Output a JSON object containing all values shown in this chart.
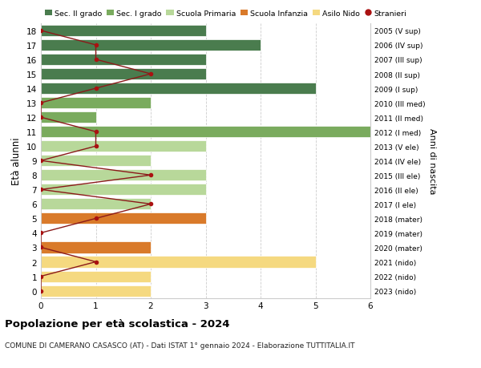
{
  "ages": [
    18,
    17,
    16,
    15,
    14,
    13,
    12,
    11,
    10,
    9,
    8,
    7,
    6,
    5,
    4,
    3,
    2,
    1,
    0
  ],
  "right_labels": [
    "2005 (V sup)",
    "2006 (IV sup)",
    "2007 (III sup)",
    "2008 (II sup)",
    "2009 (I sup)",
    "2010 (III med)",
    "2011 (II med)",
    "2012 (I med)",
    "2013 (V ele)",
    "2014 (IV ele)",
    "2015 (III ele)",
    "2016 (II ele)",
    "2017 (I ele)",
    "2018 (mater)",
    "2019 (mater)",
    "2020 (mater)",
    "2021 (nido)",
    "2022 (nido)",
    "2023 (nido)"
  ],
  "bar_values": [
    3,
    4,
    3,
    3,
    5,
    2,
    1,
    6,
    3,
    2,
    3,
    3,
    2,
    3,
    0,
    2,
    5,
    2,
    2
  ],
  "bar_colors": [
    "#4a7c4e",
    "#4a7c4e",
    "#4a7c4e",
    "#4a7c4e",
    "#4a7c4e",
    "#7aab5e",
    "#7aab5e",
    "#7aab5e",
    "#b8d89a",
    "#b8d89a",
    "#b8d89a",
    "#b8d89a",
    "#b8d89a",
    "#d97a2a",
    "#d97a2a",
    "#d97a2a",
    "#f5d980",
    "#f5d980",
    "#f5d980"
  ],
  "stranieri_values": [
    0,
    1,
    1,
    2,
    1,
    0,
    0,
    1,
    1,
    0,
    2,
    0,
    2,
    1,
    0,
    0,
    1,
    0,
    0
  ],
  "legend_labels": [
    "Sec. II grado",
    "Sec. I grado",
    "Scuola Primaria",
    "Scuola Infanzia",
    "Asilo Nido",
    "Stranieri"
  ],
  "legend_colors": [
    "#4a7c4e",
    "#7aab5e",
    "#b8d89a",
    "#d97a2a",
    "#f5d980",
    "#aa1111"
  ],
  "ylabel": "Età alunni",
  "right_ylabel": "Anni di nascita",
  "title": "Popolazione per età scolastica - 2024",
  "subtitle": "COMUNE DI CAMERANO CASASCO (AT) - Dati ISTAT 1° gennaio 2024 - Elaborazione TUTTITALIA.IT",
  "xlim": [
    0,
    6
  ],
  "bg_color": "#ffffff",
  "grid_color": "#cccccc"
}
